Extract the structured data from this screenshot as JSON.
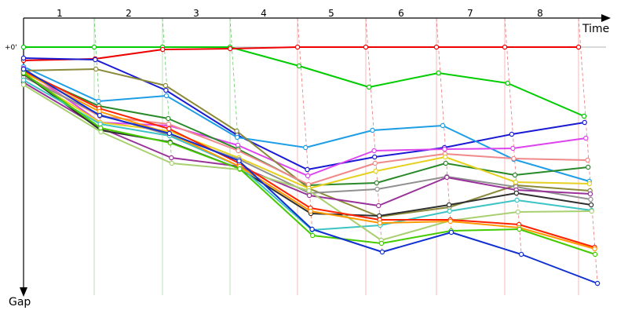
{
  "chart_data": {
    "type": "line",
    "title": "",
    "xlabel": "Time",
    "ylabel": "Gap",
    "zero_label": "+0'",
    "laps": [
      "1",
      "2",
      "3",
      "4",
      "5",
      "6",
      "7",
      "8"
    ],
    "gap_range": [
      0,
      300
    ],
    "colors": {
      "lap_line_early": "#b8e0b8",
      "lap_line_late": "#f4b8b8",
      "lap_dash_early": "#66cc66",
      "lap_dash_late": "#ee7777",
      "axis": "#000000"
    },
    "series": [
      {
        "color": "#00cc00",
        "gaps": [
          0,
          0,
          0,
          0,
          24,
          51,
          33,
          46,
          88
        ]
      },
      {
        "color": "#ee0000",
        "gaps": [
          17,
          15,
          3,
          2,
          0,
          0,
          0,
          0,
          0
        ]
      },
      {
        "color": "#1a1ad4",
        "gaps": [
          14,
          16,
          55,
          112,
          156,
          140,
          128,
          111,
          96
        ]
      },
      {
        "color": "#1e9ee6",
        "gaps": [
          25,
          69,
          62,
          115,
          128,
          106,
          100,
          143,
          171
        ]
      },
      {
        "color": "#dd44ee",
        "gaps": [
          27,
          96,
          100,
          125,
          164,
          132,
          130,
          129,
          116
        ]
      },
      {
        "color": "#8a8a3a",
        "gaps": [
          30,
          28,
          49,
          107,
          180,
          216,
          204,
          176,
          183
        ]
      },
      {
        "color": "#2a8a2a",
        "gaps": [
          32,
          75,
          91,
          130,
          176,
          173,
          148,
          163,
          153
        ]
      },
      {
        "color": "#f08a8a",
        "gaps": [
          35,
          88,
          98,
          132,
          175,
          148,
          136,
          142,
          144
        ]
      },
      {
        "color": "#e6d020",
        "gaps": [
          36,
          96,
          107,
          141,
          180,
          158,
          140,
          172,
          174
        ]
      },
      {
        "color": "#909090",
        "gaps": [
          38,
          86,
          112,
          143,
          186,
          181,
          165,
          178,
          194
        ]
      },
      {
        "color": "#993399",
        "gaps": [
          45,
          103,
          141,
          152,
          189,
          202,
          166,
          182,
          187
        ]
      },
      {
        "color": "#303030",
        "gaps": [
          34,
          106,
          121,
          155,
          212,
          215,
          201,
          186,
          201
        ]
      },
      {
        "color": "#3ec4c4",
        "gaps": [
          42,
          98,
          113,
          152,
          233,
          227,
          209,
          195,
          208
        ]
      },
      {
        "color": "#a8d070",
        "gaps": [
          48,
          108,
          148,
          156,
          183,
          246,
          221,
          210,
          209
        ]
      },
      {
        "color": "#ff2200",
        "gaps": [
          30,
          78,
          104,
          148,
          205,
          220,
          220,
          226,
          255
        ]
      },
      {
        "color": "#ff9900",
        "gaps": [
          32,
          82,
          110,
          152,
          209,
          224,
          222,
          230,
          257
        ]
      },
      {
        "color": "#44cc00",
        "gaps": [
          33,
          103,
          122,
          155,
          240,
          250,
          234,
          232,
          264
        ]
      },
      {
        "color": "#1030d0",
        "gaps": [
          28,
          87,
          110,
          145,
          232,
          261,
          236,
          264,
          301
        ]
      }
    ]
  }
}
